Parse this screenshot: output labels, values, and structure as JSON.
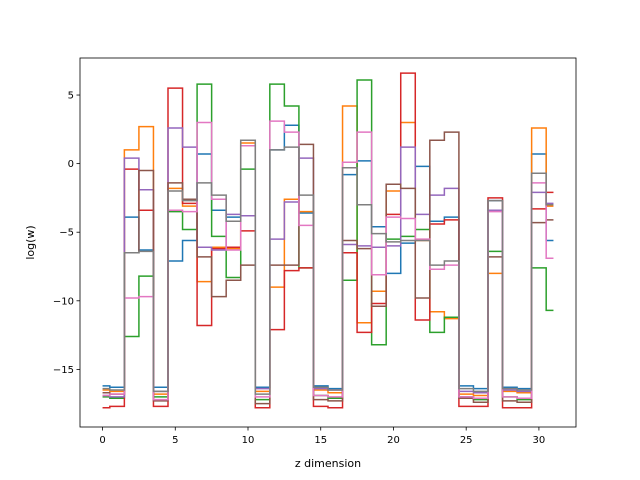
{
  "chart_data": {
    "type": "line",
    "step": "mid",
    "xlabel": "z dimension",
    "ylabel": "log(w)",
    "title": "",
    "xlim": [
      -1.55,
      32.55
    ],
    "ylim": [
      -19.2,
      7.7
    ],
    "x_ticks": [
      0,
      5,
      10,
      15,
      20,
      25,
      30
    ],
    "y_ticks": [
      -15,
      -10,
      -5,
      0,
      5
    ],
    "x": [
      0,
      1,
      2,
      3,
      4,
      5,
      6,
      7,
      8,
      9,
      10,
      11,
      12,
      13,
      14,
      15,
      16,
      17,
      18,
      19,
      20,
      21,
      22,
      23,
      24,
      25,
      26,
      27,
      28,
      29,
      30,
      31
    ],
    "series": [
      {
        "color": "#1f77b4",
        "values": [
          -16.2,
          -16.3,
          -3.9,
          -6.3,
          -16.3,
          -7.1,
          -5.6,
          0.7,
          -3.4,
          -3.9,
          1.7,
          -16.3,
          1.0,
          2.8,
          -3.6,
          -16.2,
          -16.4,
          -0.8,
          0.2,
          -4.6,
          -8.0,
          -5.8,
          -0.2,
          -4.2,
          -3.9,
          -16.2,
          -16.4,
          -2.7,
          -16.3,
          -16.4,
          0.7,
          -5.6
        ]
      },
      {
        "color": "#ff7f0e",
        "values": [
          -16.5,
          -16.6,
          1.0,
          2.7,
          -16.8,
          -1.8,
          -3.1,
          -8.6,
          -6.1,
          -6.2,
          1.5,
          -16.6,
          -9.0,
          -2.6,
          -3.5,
          -16.5,
          -16.7,
          4.2,
          -11.6,
          -9.3,
          -2.0,
          3.0,
          -5.6,
          -10.8,
          -11.3,
          -16.8,
          -16.9,
          -8.0,
          -16.6,
          -16.7,
          2.6,
          -3.1
        ]
      },
      {
        "color": "#2ca02c",
        "values": [
          -17.0,
          -17.1,
          -12.6,
          -8.2,
          -17.0,
          -3.5,
          -4.8,
          5.8,
          -5.3,
          -8.3,
          -0.4,
          -17.2,
          5.8,
          4.2,
          -7.6,
          -16.9,
          -17.1,
          -8.5,
          6.1,
          -13.2,
          -5.5,
          -5.3,
          -4.8,
          -12.3,
          -11.2,
          -17.0,
          -17.2,
          -6.4,
          -17.0,
          -17.2,
          -7.6,
          -10.7
        ]
      },
      {
        "color": "#d62728",
        "values": [
          -17.8,
          -17.7,
          -0.4,
          -3.4,
          -17.7,
          5.5,
          -2.9,
          -11.8,
          -6.2,
          -6.1,
          -4.9,
          -17.8,
          -12.1,
          -7.8,
          -7.6,
          -17.7,
          -17.8,
          -6.5,
          -12.3,
          -10.2,
          -3.7,
          6.6,
          -11.4,
          -4.4,
          -4.1,
          -17.7,
          -17.7,
          -2.5,
          -17.8,
          -17.8,
          -3.3,
          -2.1
        ]
      },
      {
        "color": "#9467bd",
        "values": [
          -16.9,
          -17.0,
          0.4,
          -1.9,
          -16.6,
          2.6,
          1.2,
          -6.1,
          -6.3,
          -3.7,
          -3.8,
          -16.4,
          -5.5,
          -2.8,
          0.4,
          -16.4,
          -16.5,
          -5.9,
          -6.0,
          -6.1,
          -6.0,
          1.2,
          -3.7,
          -2.3,
          -1.8,
          -16.6,
          -16.7,
          -3.4,
          -16.5,
          -16.6,
          -2.1,
          -2.9
        ]
      },
      {
        "color": "#8c564b",
        "values": [
          -16.7,
          -16.8,
          -6.5,
          -0.5,
          -17.3,
          -1.4,
          -2.6,
          -6.8,
          -9.7,
          -8.5,
          -7.4,
          -17.5,
          -7.4,
          -7.4,
          1.4,
          -17.2,
          -17.3,
          -5.6,
          -6.2,
          -10.4,
          -1.5,
          -1.8,
          -9.8,
          1.7,
          2.3,
          -17.1,
          -17.4,
          -6.8,
          -17.3,
          -17.4,
          -4.3,
          -4.1
        ]
      },
      {
        "color": "#e377c2",
        "values": [
          -16.9,
          -16.8,
          -9.8,
          -9.7,
          -17.2,
          -3.4,
          -3.5,
          3.0,
          -2.6,
          -6.3,
          1.3,
          -17.0,
          3.1,
          2.3,
          -4.5,
          -16.9,
          -17.0,
          0.1,
          2.3,
          -8.1,
          -3.9,
          -4.0,
          -5.5,
          -7.7,
          -7.4,
          -17.0,
          -17.1,
          -3.5,
          -17.0,
          -17.1,
          -1.4,
          -6.9
        ]
      },
      {
        "color": "#7f7f7f",
        "values": [
          -16.4,
          -16.5,
          -6.5,
          -6.4,
          -16.6,
          -2.0,
          -2.7,
          -1.4,
          -2.3,
          -4.2,
          1.7,
          -16.8,
          1.0,
          1.2,
          -2.3,
          -16.3,
          -16.5,
          -0.3,
          -3.0,
          -5.1,
          -5.7,
          -5.6,
          -5.6,
          -7.4,
          -7.1,
          -16.4,
          -16.6,
          -2.7,
          -16.4,
          -16.5,
          -0.7,
          -3.0
        ]
      }
    ]
  }
}
